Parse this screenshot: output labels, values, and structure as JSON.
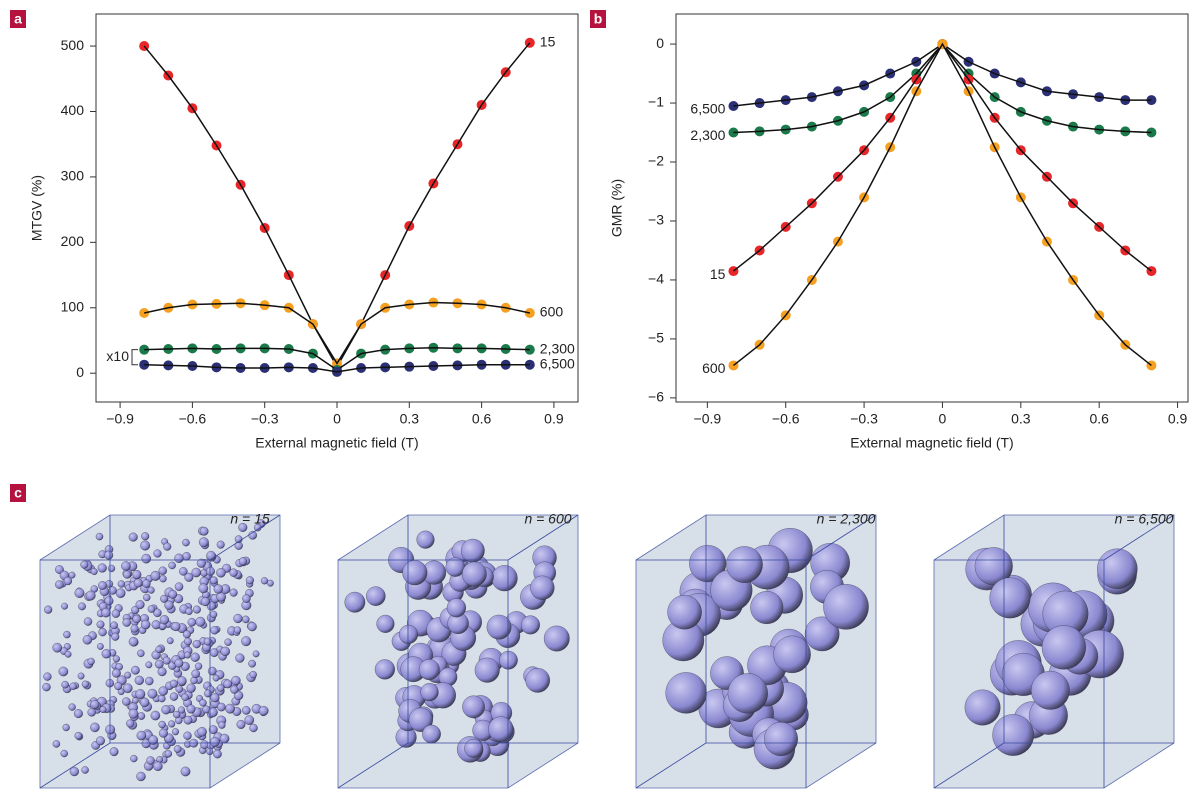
{
  "chart_data": [
    {
      "type": "scatter",
      "panel_label": "a",
      "ylabel": "MTGV (%)",
      "xlabel": "External magnetic field (T)",
      "annotation": "x10",
      "x": [
        -0.8,
        -0.7,
        -0.6,
        -0.5,
        -0.4,
        -0.3,
        -0.2,
        -0.1,
        0,
        0.1,
        0.2,
        0.3,
        0.4,
        0.5,
        0.6,
        0.7,
        0.8
      ],
      "series": [
        {
          "name": "15",
          "color": "#e8262a",
          "values": [
            500,
            455,
            405,
            348,
            288,
            222,
            150,
            75,
            10,
            75,
            150,
            225,
            290,
            350,
            410,
            460,
            505
          ]
        },
        {
          "name": "600",
          "color": "#f5a021",
          "values": [
            92,
            100,
            105,
            106,
            107,
            104,
            100,
            75,
            15,
            75,
            100,
            105,
            108,
            107,
            105,
            100,
            92
          ]
        },
        {
          "name": "2,300",
          "color": "#1a7a4a",
          "values": [
            36,
            37,
            38,
            37,
            38,
            38,
            37,
            30,
            5,
            30,
            36,
            38,
            39,
            38,
            38,
            37,
            36
          ]
        },
        {
          "name": "6,500",
          "color": "#2b2f73",
          "values": [
            13,
            12,
            11,
            9,
            8,
            8,
            9,
            8,
            2,
            8,
            9,
            10,
            11,
            12,
            13,
            13,
            13
          ]
        }
      ],
      "xlim": [
        -1.0,
        1.0
      ],
      "ylim": [
        -44,
        549
      ],
      "xticks": [
        {
          "value": -0.9,
          "label": "−0.9"
        },
        {
          "value": -0.6,
          "label": "−0.6"
        },
        {
          "value": -0.3,
          "label": "−0.3"
        },
        0,
        0.3,
        0.6,
        0.9
      ],
      "yticks": [
        0,
        100,
        200,
        300,
        400,
        500
      ]
    },
    {
      "type": "scatter",
      "panel_label": "b",
      "ylabel": "GMR (%)",
      "xlabel": "External magnetic field (T)",
      "x": [
        -0.8,
        -0.7,
        -0.6,
        -0.5,
        -0.4,
        -0.3,
        -0.2,
        -0.1,
        0,
        0.1,
        0.2,
        0.3,
        0.4,
        0.5,
        0.6,
        0.7,
        0.8
      ],
      "series": [
        {
          "name": "6,500",
          "color": "#2b2f73",
          "values": [
            -1.05,
            -1.0,
            -0.95,
            -0.9,
            -0.8,
            -0.7,
            -0.5,
            -0.3,
            0,
            -0.3,
            -0.5,
            -0.65,
            -0.8,
            -0.85,
            -0.9,
            -0.95,
            -0.95
          ]
        },
        {
          "name": "2,300",
          "color": "#1a7a4a",
          "values": [
            -1.5,
            -1.48,
            -1.45,
            -1.4,
            -1.3,
            -1.15,
            -0.9,
            -0.5,
            0,
            -0.5,
            -0.9,
            -1.15,
            -1.3,
            -1.4,
            -1.45,
            -1.48,
            -1.5
          ]
        },
        {
          "name": "15",
          "color": "#e8262a",
          "values": [
            -3.85,
            -3.5,
            -3.1,
            -2.7,
            -2.25,
            -1.8,
            -1.25,
            -0.6,
            0,
            -0.6,
            -1.25,
            -1.8,
            -2.25,
            -2.7,
            -3.1,
            -3.5,
            -3.85
          ]
        },
        {
          "name": "600",
          "color": "#f5a021",
          "values": [
            -5.45,
            -5.1,
            -4.6,
            -4.0,
            -3.35,
            -2.6,
            -1.75,
            -0.8,
            0,
            -0.8,
            -1.75,
            -2.6,
            -3.35,
            -4.0,
            -4.6,
            -5.1,
            -5.45
          ]
        }
      ],
      "xlim": [
        -1.02,
        0.94
      ],
      "ylim": [
        -6.07,
        0.51
      ],
      "xticks": [
        {
          "value": -0.9,
          "label": "−0.9"
        },
        {
          "value": -0.6,
          "label": "−0.6"
        },
        {
          "value": -0.3,
          "label": "−0.3"
        },
        0,
        0.3,
        0.6,
        0.9
      ],
      "yticks": [
        0,
        {
          "value": -1,
          "label": "−1"
        },
        {
          "value": -2,
          "label": "−2"
        },
        {
          "value": -3,
          "label": "−3"
        },
        {
          "value": -4,
          "label": "−4"
        },
        {
          "value": -5,
          "label": "−5"
        },
        {
          "value": -6,
          "label": "−6"
        }
      ]
    }
  ],
  "panel_c": {
    "panel_label": "c",
    "captions": [
      "n = 15",
      "n = 600",
      "n = 2,300",
      "n = 6,500"
    ]
  }
}
